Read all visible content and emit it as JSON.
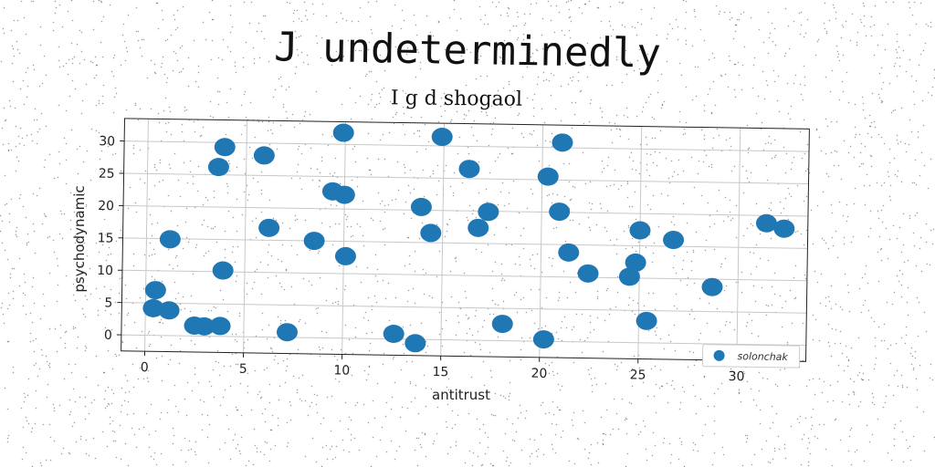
{
  "chart_data": {
    "type": "scatter",
    "title": "J undeterminedly",
    "subtitle": "I g d shogaol",
    "xlabel": "antitrust",
    "ylabel": "psychodynamic",
    "xlim": [
      -1.2,
      33.5
    ],
    "ylim": [
      -2.5,
      33.5
    ],
    "xticks": [
      0,
      5,
      10,
      15,
      20,
      25,
      30
    ],
    "yticks": [
      0,
      5,
      10,
      15,
      20,
      25,
      30
    ],
    "grid": true,
    "legend_position": "bottom-right",
    "color": "#1f77b4",
    "series": [
      {
        "name": "solonchak",
        "points": [
          [
            0.4,
            4.2
          ],
          [
            0.5,
            7.0
          ],
          [
            1.2,
            3.9
          ],
          [
            1.2,
            14.9
          ],
          [
            2.5,
            1.6
          ],
          [
            3.0,
            1.5
          ],
          [
            3.8,
            1.6
          ],
          [
            3.9,
            10.2
          ],
          [
            3.6,
            26.2
          ],
          [
            3.9,
            29.3
          ],
          [
            5.9,
            28.1
          ],
          [
            6.2,
            16.9
          ],
          [
            7.2,
            0.8
          ],
          [
            8.5,
            15.0
          ],
          [
            9.4,
            22.7
          ],
          [
            10.0,
            22.2
          ],
          [
            10.1,
            12.7
          ],
          [
            9.9,
            31.8
          ],
          [
            12.6,
            0.8
          ],
          [
            13.7,
            -0.6
          ],
          [
            13.9,
            20.5
          ],
          [
            14.4,
            16.5
          ],
          [
            14.9,
            31.4
          ],
          [
            16.3,
            26.5
          ],
          [
            16.8,
            17.4
          ],
          [
            17.3,
            19.9
          ],
          [
            18.1,
            2.6
          ],
          [
            20.2,
            0.3
          ],
          [
            20.3,
            25.5
          ],
          [
            20.9,
            20.1
          ],
          [
            21.0,
            30.8
          ],
          [
            21.4,
            13.8
          ],
          [
            22.4,
            10.6
          ],
          [
            24.5,
            10.2
          ],
          [
            24.8,
            12.4
          ],
          [
            25.0,
            17.4
          ],
          [
            25.4,
            3.4
          ],
          [
            26.7,
            16.0
          ],
          [
            28.7,
            8.8
          ],
          [
            31.4,
            18.8
          ],
          [
            32.3,
            18.0
          ]
        ]
      }
    ]
  }
}
